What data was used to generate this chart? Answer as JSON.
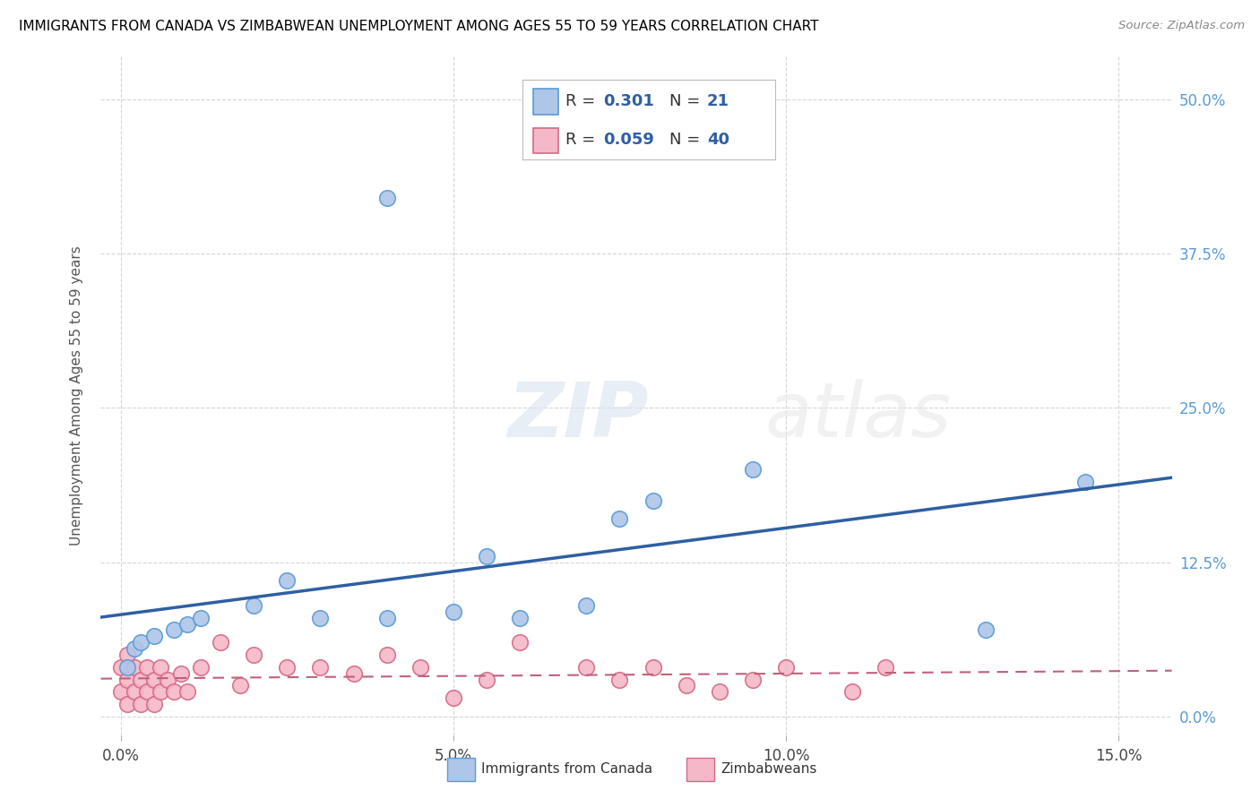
{
  "title": "IMMIGRANTS FROM CANADA VS ZIMBABWEAN UNEMPLOYMENT AMONG AGES 55 TO 59 YEARS CORRELATION CHART",
  "source": "Source: ZipAtlas.com",
  "ylabel": "Unemployment Among Ages 55 to 59 years",
  "blue_R": 0.301,
  "blue_N": 21,
  "pink_R": 0.059,
  "pink_N": 40,
  "blue_scatter_x": [
    0.001,
    0.002,
    0.003,
    0.005,
    0.008,
    0.01,
    0.012,
    0.02,
    0.025,
    0.03,
    0.04,
    0.05,
    0.055,
    0.06,
    0.07,
    0.075,
    0.08,
    0.095,
    0.13,
    0.145,
    0.04
  ],
  "blue_scatter_y": [
    0.04,
    0.055,
    0.06,
    0.065,
    0.07,
    0.075,
    0.08,
    0.09,
    0.11,
    0.08,
    0.08,
    0.085,
    0.13,
    0.08,
    0.09,
    0.16,
    0.175,
    0.2,
    0.07,
    0.19,
    0.42
  ],
  "pink_scatter_x": [
    0.0,
    0.0,
    0.001,
    0.001,
    0.001,
    0.002,
    0.002,
    0.003,
    0.003,
    0.004,
    0.004,
    0.005,
    0.005,
    0.006,
    0.006,
    0.007,
    0.008,
    0.009,
    0.01,
    0.012,
    0.015,
    0.018,
    0.02,
    0.025,
    0.03,
    0.035,
    0.04,
    0.045,
    0.05,
    0.055,
    0.06,
    0.07,
    0.075,
    0.08,
    0.085,
    0.09,
    0.095,
    0.1,
    0.11,
    0.115
  ],
  "pink_scatter_y": [
    0.02,
    0.04,
    0.01,
    0.03,
    0.05,
    0.02,
    0.04,
    0.01,
    0.03,
    0.02,
    0.04,
    0.01,
    0.03,
    0.02,
    0.04,
    0.03,
    0.02,
    0.035,
    0.02,
    0.04,
    0.06,
    0.025,
    0.05,
    0.04,
    0.04,
    0.035,
    0.05,
    0.04,
    0.015,
    0.03,
    0.06,
    0.04,
    0.03,
    0.04,
    0.025,
    0.02,
    0.03,
    0.04,
    0.02,
    0.04
  ],
  "blue_color": "#aec6e8",
  "blue_edge_color": "#5b9bd5",
  "pink_color": "#f4b8c8",
  "pink_edge_color": "#d46a85",
  "blue_line_color": "#2e5fa3",
  "pink_line_color": "#c0607a",
  "background_color": "#ffffff",
  "legend_label_blue": "Immigrants from Canada",
  "legend_label_pink": "Zimbabweans",
  "xlim": [
    -0.003,
    0.158
  ],
  "ylim": [
    -0.015,
    0.535
  ],
  "xtick_vals": [
    0.0,
    0.05,
    0.1,
    0.15
  ],
  "ytick_vals": [
    0.0,
    0.125,
    0.25,
    0.375,
    0.5
  ]
}
